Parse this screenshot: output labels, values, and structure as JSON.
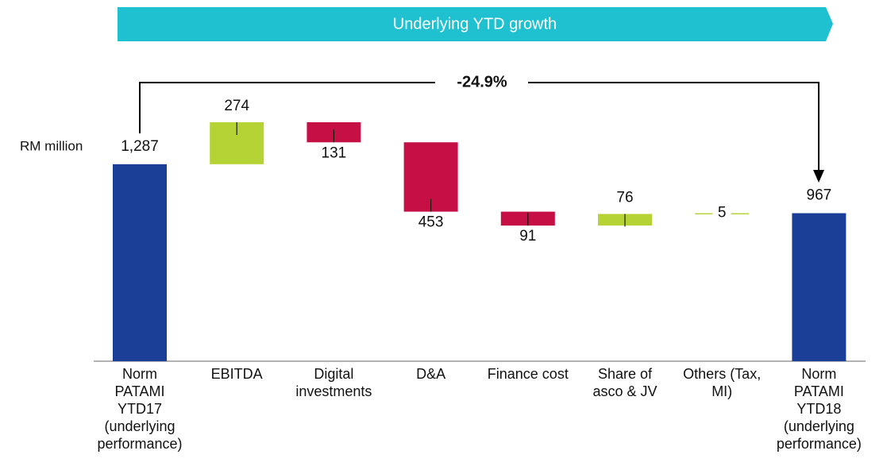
{
  "chart_data": {
    "type": "waterfall",
    "title": "Underlying YTD growth",
    "y_label": "RM million",
    "annotation": "-24.9%",
    "categories": [
      "Norm PATAMI YTD17 (underlying performance)",
      "EBITDA",
      "Digital investments",
      "D&A",
      "Finance cost",
      "Share of asco & JV",
      "Others (Tax, MI)",
      "Norm PATAMI YTD18 (underlying performance)"
    ],
    "values": [
      1287,
      274,
      -131,
      -453,
      -91,
      76,
      5,
      967
    ],
    "value_labels": [
      "1,287",
      "274",
      "131",
      "453",
      "91",
      "76",
      "5",
      "967"
    ],
    "kinds": [
      "total",
      "change",
      "change",
      "change",
      "change",
      "change",
      "change",
      "total"
    ],
    "colors": {
      "total": "#1b3f97",
      "increase": "#b5d334",
      "decrease": "#c50f45"
    }
  }
}
